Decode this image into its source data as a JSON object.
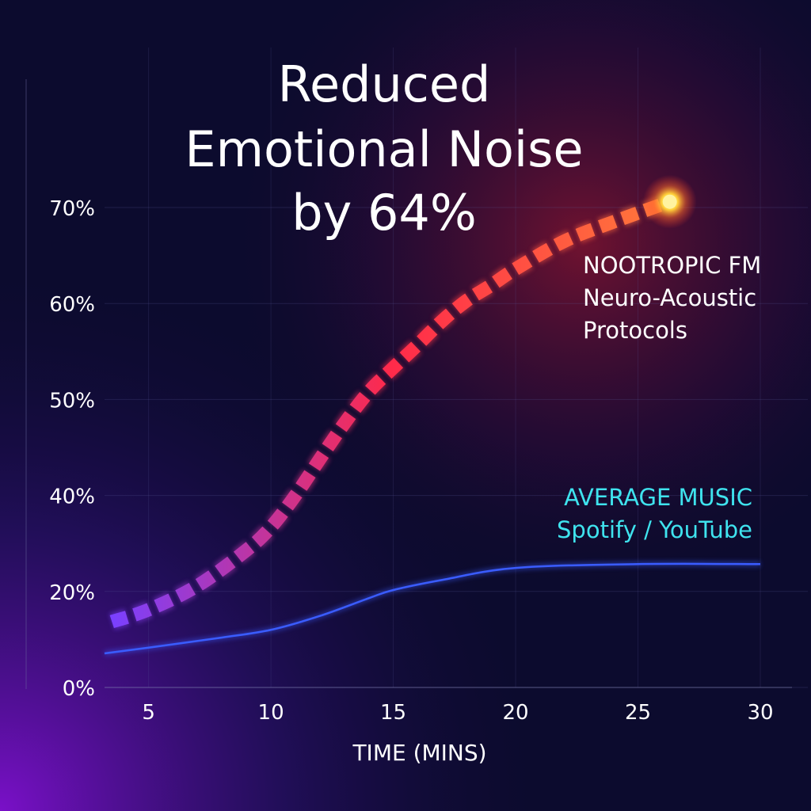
{
  "chart_data": {
    "type": "line",
    "title": [
      "Reduced",
      "Emotional Noise",
      "by 64%"
    ],
    "xlabel": "TIME (MINS)",
    "xlim": [
      3.2,
      30
    ],
    "xticks": [
      5,
      10,
      15,
      20,
      25,
      30
    ],
    "ylim": [
      0,
      70
    ],
    "yticks": [
      {
        "value": 0,
        "label": "0%"
      },
      {
        "value": 20,
        "label": "20%"
      },
      {
        "value": 40,
        "label": "40%"
      },
      {
        "value": 50,
        "label": "50%"
      },
      {
        "value": 60,
        "label": "60%"
      },
      {
        "value": 70,
        "label": "70%"
      }
    ],
    "grid": true,
    "series": [
      {
        "name": "NOOTROPIC FM",
        "annotation": [
          "Neuro-Acoustic",
          "Protocols"
        ],
        "label_color": "#ffffff",
        "dashed": true,
        "color": [
          "#7a40ff",
          "#ff2a4a",
          "#ff7a3a"
        ],
        "x": [
          3.5,
          5,
          7,
          9,
          10,
          11,
          12,
          13,
          14,
          15,
          16,
          17,
          18,
          19,
          20,
          22,
          24,
          26.3
        ],
        "values": [
          13.7,
          16.2,
          21.2,
          28.6,
          33.4,
          40,
          43.8,
          47.5,
          50.8,
          53.3,
          55.7,
          58.2,
          60.3,
          61.9,
          63.6,
          66.5,
          68.5,
          70.6
        ]
      },
      {
        "name": "AVERAGE MUSIC",
        "annotation": [
          "Spotify / YouTube"
        ],
        "label_color": "#3fe3ee",
        "dashed": false,
        "color": [
          "#3a5cff"
        ],
        "x": [
          3.2,
          5,
          8,
          10,
          12,
          14,
          15,
          17,
          20,
          25,
          30
        ],
        "values": [
          7.1,
          8.3,
          10.4,
          12,
          14.9,
          18.6,
          20.3,
          22.4,
          24.9,
          25.7,
          25.7
        ]
      }
    ]
  }
}
